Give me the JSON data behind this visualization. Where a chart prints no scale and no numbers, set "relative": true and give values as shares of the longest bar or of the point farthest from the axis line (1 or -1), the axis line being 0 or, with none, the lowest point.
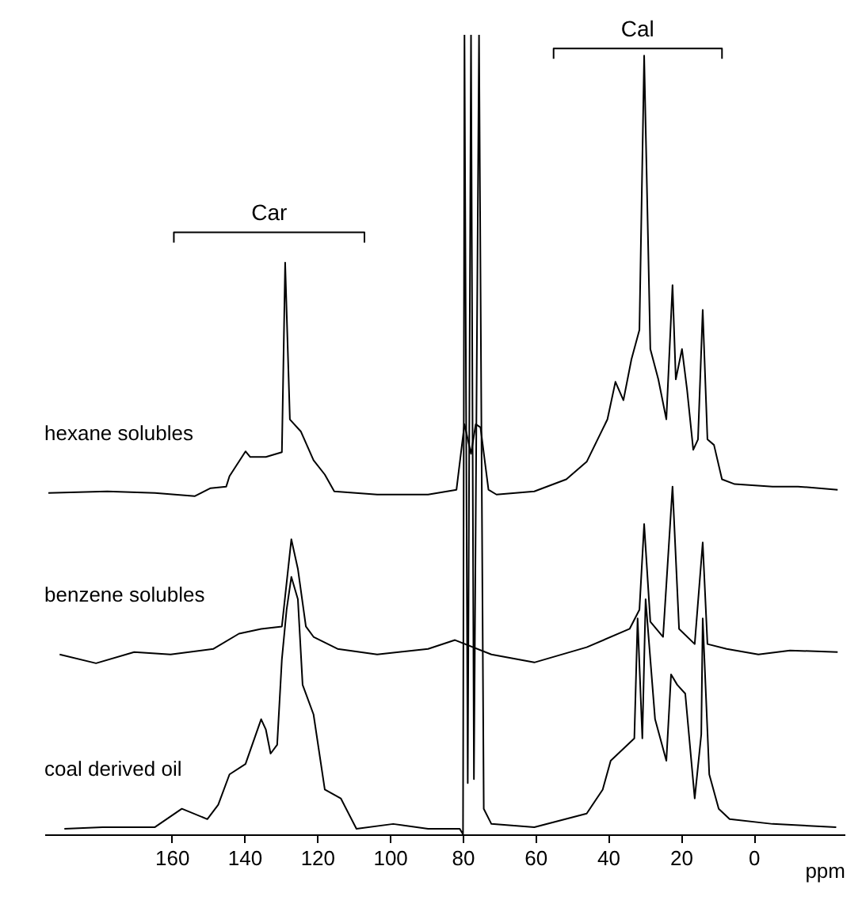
{
  "chart_data": {
    "type": "line",
    "relative": true,
    "xlabel": "ppm",
    "xlim": [
      195,
      -25
    ],
    "xticks": [
      160,
      140,
      120,
      100,
      80,
      60,
      40,
      20,
      0
    ],
    "annotations": [
      {
        "text": "Car",
        "x": 133.2,
        "y": 0.762
      },
      {
        "text": "Cal",
        "x": 31.9,
        "y": 0.992
      }
    ],
    "series": [
      {
        "type": "line",
        "color": "#000000",
        "x": [
          159.4,
          159.4,
          107.0,
          107.0
        ],
        "values": [
          0.74,
          0.753,
          0.753,
          0.74
        ]
      },
      {
        "type": "line",
        "color": "#000000",
        "x": [
          55.0,
          55.0,
          8.7,
          8.7
        ],
        "values": [
          0.97,
          0.983,
          0.983,
          0.97
        ]
      },
      {
        "name": "hexane solubles",
        "color": "#000000",
        "x": [
          193.9,
          177.7,
          164.6,
          153.7,
          149.3,
          145.0,
          144.1,
          139.7,
          138.4,
          134.1,
          129.7,
          128.8,
          127.5,
          124.5,
          121.0,
          117.9,
          115.3,
          103.5,
          89.5,
          81.7,
          79.5,
          77.7,
          76.4,
          75.1,
          72.9,
          70.7,
          60.3,
          51.5,
          45.9,
          40.2,
          38.0,
          35.8,
          33.6,
          31.4,
          30.1,
          28.4,
          26.2,
          24.0,
          22.3,
          21.4,
          19.7,
          18.3,
          16.6,
          15.3,
          14.0,
          12.7,
          10.9,
          8.7,
          5.2,
          -5.2,
          -12.2,
          -23.1
        ],
        "values": [
          0.427,
          0.429,
          0.427,
          0.423,
          0.433,
          0.435,
          0.448,
          0.479,
          0.472,
          0.472,
          0.478,
          0.715,
          0.519,
          0.504,
          0.468,
          0.45,
          0.429,
          0.425,
          0.425,
          0.431,
          0.513,
          0.476,
          0.513,
          0.509,
          0.431,
          0.425,
          0.429,
          0.444,
          0.466,
          0.519,
          0.566,
          0.543,
          0.594,
          0.631,
          0.974,
          0.607,
          0.569,
          0.519,
          0.687,
          0.569,
          0.607,
          0.556,
          0.481,
          0.494,
          0.656,
          0.494,
          0.487,
          0.444,
          0.438,
          0.435,
          0.435,
          0.431
        ]
      },
      {
        "name": "benzene solubles",
        "color": "#000000",
        "x": [
          190.8,
          180.8,
          170.3,
          160.3,
          148.5,
          141.5,
          135.4,
          129.7,
          127.1,
          125.3,
          123.1,
          121.0,
          114.4,
          103.5,
          89.5,
          82.1,
          72.1,
          60.3,
          45.9,
          34.1,
          31.4,
          30.1,
          28.4,
          24.9,
          22.3,
          20.5,
          16.2,
          14.0,
          12.7,
          7.4,
          -1.3,
          -10.0,
          -23.1
        ],
        "values": [
          0.225,
          0.214,
          0.228,
          0.225,
          0.232,
          0.251,
          0.257,
          0.26,
          0.369,
          0.332,
          0.26,
          0.247,
          0.232,
          0.225,
          0.232,
          0.243,
          0.225,
          0.215,
          0.234,
          0.257,
          0.281,
          0.388,
          0.266,
          0.247,
          0.435,
          0.257,
          0.238,
          0.365,
          0.238,
          0.232,
          0.225,
          0.23,
          0.228
        ]
      },
      {
        "name": "coal derived oil",
        "color": "#000000",
        "x": [
          189.5,
          179.0,
          164.6,
          157.2,
          150.2,
          147.2,
          144.1,
          139.7,
          135.4,
          134.1,
          132.8,
          131.0,
          129.7,
          128.4,
          127.1,
          125.3,
          124.0,
          121.0,
          117.9,
          113.5,
          109.2,
          99.1,
          89.5,
          80.8,
          79.9,
          79.5,
          78.6,
          77.7,
          76.9,
          75.5,
          74.2,
          72.1,
          60.3,
          45.9,
          41.5,
          39.3,
          32.8,
          31.9,
          30.6,
          29.7,
          27.1,
          24.0,
          22.7,
          21.0,
          18.8,
          16.2,
          14.4,
          14.0,
          12.2,
          9.6,
          6.6,
          -5.2,
          -22.7
        ],
        "values": [
          0.007,
          0.009,
          0.009,
          0.032,
          0.019,
          0.037,
          0.075,
          0.088,
          0.144,
          0.131,
          0.101,
          0.112,
          0.219,
          0.281,
          0.322,
          0.294,
          0.187,
          0.15,
          0.056,
          0.045,
          0.007,
          0.013,
          0.007,
          0.007,
          0,
          1,
          0.064,
          1,
          0.069,
          1,
          0.032,
          0.013,
          0.009,
          0.026,
          0.056,
          0.092,
          0.12,
          0.27,
          0.12,
          0.294,
          0.144,
          0.092,
          0.2,
          0.187,
          0.176,
          0.045,
          0.125,
          0.27,
          0.075,
          0.032,
          0.019,
          0.013,
          0.009
        ]
      }
    ]
  }
}
